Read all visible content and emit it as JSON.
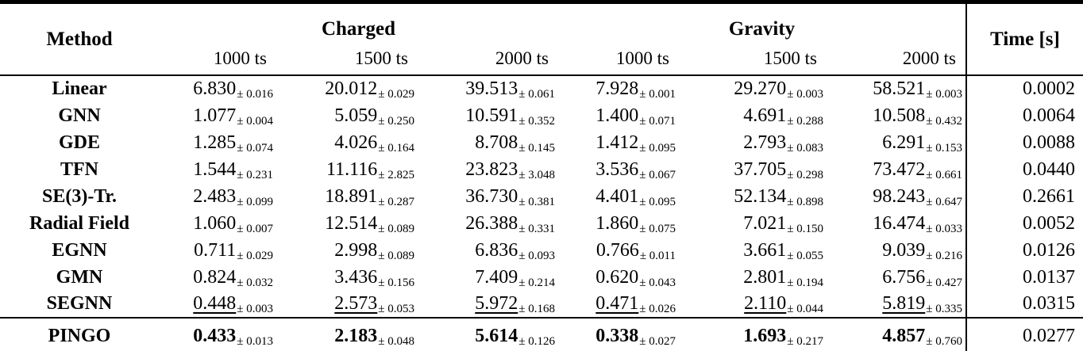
{
  "table": {
    "header": {
      "method": "Method",
      "group_charged": "Charged",
      "group_gravity": "Gravity",
      "time": "Time [s]",
      "subcols": [
        "1000 ts",
        "1500 ts",
        "2000 ts",
        "1000 ts",
        "1500 ts",
        "2000 ts"
      ]
    },
    "pm_symbol": "±",
    "rows": [
      {
        "method": "Linear",
        "style": "normal",
        "values": [
          [
            "6.830",
            "0.016"
          ],
          [
            "20.012",
            "0.029"
          ],
          [
            "39.513",
            "0.061"
          ],
          [
            "7.928",
            "0.001"
          ],
          [
            "29.270",
            "0.003"
          ],
          [
            "58.521",
            "0.003"
          ]
        ],
        "time": "0.0002"
      },
      {
        "method": "GNN",
        "style": "normal",
        "values": [
          [
            "1.077",
            "0.004"
          ],
          [
            "5.059",
            "0.250"
          ],
          [
            "10.591",
            "0.352"
          ],
          [
            "1.400",
            "0.071"
          ],
          [
            "4.691",
            "0.288"
          ],
          [
            "10.508",
            "0.432"
          ]
        ],
        "time": "0.0064"
      },
      {
        "method": "GDE",
        "style": "normal",
        "values": [
          [
            "1.285",
            "0.074"
          ],
          [
            "4.026",
            "0.164"
          ],
          [
            "8.708",
            "0.145"
          ],
          [
            "1.412",
            "0.095"
          ],
          [
            "2.793",
            "0.083"
          ],
          [
            "6.291",
            "0.153"
          ]
        ],
        "time": "0.0088"
      },
      {
        "method": "TFN",
        "style": "normal",
        "values": [
          [
            "1.544",
            "0.231"
          ],
          [
            "11.116",
            "2.825"
          ],
          [
            "23.823",
            "3.048"
          ],
          [
            "3.536",
            "0.067"
          ],
          [
            "37.705",
            "0.298"
          ],
          [
            "73.472",
            "0.661"
          ]
        ],
        "time": "0.0440"
      },
      {
        "method": "SE(3)-Tr.",
        "style": "normal",
        "values": [
          [
            "2.483",
            "0.099"
          ],
          [
            "18.891",
            "0.287"
          ],
          [
            "36.730",
            "0.381"
          ],
          [
            "4.401",
            "0.095"
          ],
          [
            "52.134",
            "0.898"
          ],
          [
            "98.243",
            "0.647"
          ]
        ],
        "time": "0.2661"
      },
      {
        "method": "Radial Field",
        "style": "normal",
        "values": [
          [
            "1.060",
            "0.007"
          ],
          [
            "12.514",
            "0.089"
          ],
          [
            "26.388",
            "0.331"
          ],
          [
            "1.860",
            "0.075"
          ],
          [
            "7.021",
            "0.150"
          ],
          [
            "16.474",
            "0.033"
          ]
        ],
        "time": "0.0052"
      },
      {
        "method": "EGNN",
        "style": "normal",
        "values": [
          [
            "0.711",
            "0.029"
          ],
          [
            "2.998",
            "0.089"
          ],
          [
            "6.836",
            "0.093"
          ],
          [
            "0.766",
            "0.011"
          ],
          [
            "3.661",
            "0.055"
          ],
          [
            "9.039",
            "0.216"
          ]
        ],
        "time": "0.0126"
      },
      {
        "method": "GMN",
        "style": "normal",
        "values": [
          [
            "0.824",
            "0.032"
          ],
          [
            "3.436",
            "0.156"
          ],
          [
            "7.409",
            "0.214"
          ],
          [
            "0.620",
            "0.043"
          ],
          [
            "2.801",
            "0.194"
          ],
          [
            "6.756",
            "0.427"
          ]
        ],
        "time": "0.0137"
      },
      {
        "method": "SEGNN",
        "style": "underline",
        "values": [
          [
            "0.448",
            "0.003"
          ],
          [
            "2.573",
            "0.053"
          ],
          [
            "5.972",
            "0.168"
          ],
          [
            "0.471",
            "0.026"
          ],
          [
            "2.110",
            "0.044"
          ],
          [
            "5.819",
            "0.335"
          ]
        ],
        "time": "0.0315"
      },
      {
        "method": "PINGO",
        "style": "bold",
        "values": [
          [
            "0.433",
            "0.013"
          ],
          [
            "2.183",
            "0.048"
          ],
          [
            "5.614",
            "0.126"
          ],
          [
            "0.338",
            "0.027"
          ],
          [
            "1.693",
            "0.217"
          ],
          [
            "4.857",
            "0.760"
          ]
        ],
        "time": "0.0277"
      }
    ]
  }
}
